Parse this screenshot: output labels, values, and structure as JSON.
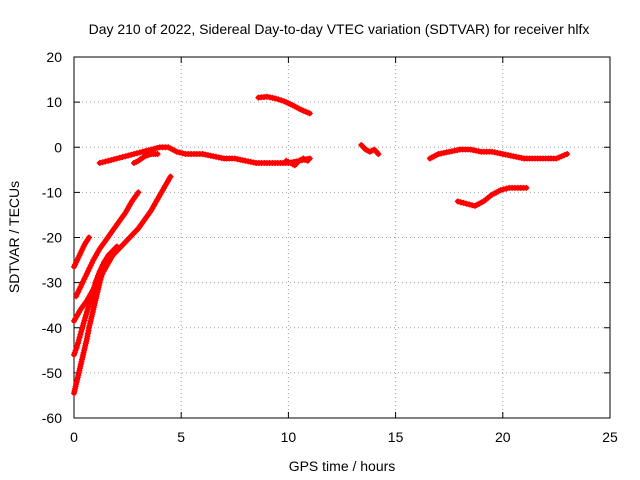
{
  "chart_data": {
    "type": "scatter",
    "title": "Day 210 of 2022, Sidereal Day-to-day VTEC variation (SDTVAR) for receiver hlfx",
    "xlabel": "GPS time / hours",
    "ylabel": "SDTVAR / TECUs",
    "xlim": [
      0,
      25
    ],
    "ylim": [
      -60,
      20
    ],
    "xticks": [
      "0",
      "5",
      "10",
      "15",
      "20",
      "25"
    ],
    "yticks": [
      "20",
      "10",
      "0",
      "-10",
      "-20",
      "-30",
      "-40",
      "-50",
      "-60"
    ],
    "xtick_values": [
      0,
      5,
      10,
      15,
      20,
      25
    ],
    "ytick_values": [
      20,
      10,
      0,
      -10,
      -20,
      -30,
      -40,
      -50,
      -60
    ],
    "grid": true,
    "marker": "+",
    "color": "#ff0000",
    "series": [
      {
        "x": [
          0.0,
          0.15,
          0.3,
          0.5,
          0.7
        ],
        "y": [
          -26.5,
          -25,
          -23.5,
          -21.5,
          -20
        ]
      },
      {
        "x": [
          0.1,
          0.3,
          0.6,
          0.9,
          1.2,
          1.5,
          1.8,
          2.1,
          2.4,
          2.7,
          3.0
        ],
        "y": [
          -33,
          -31,
          -28,
          -25,
          -22.5,
          -20.5,
          -18.5,
          -16.5,
          -14.5,
          -12,
          -10
        ]
      },
      {
        "x": [
          0.0,
          0.3,
          0.6,
          0.9,
          1.2,
          1.5,
          1.8,
          2.1,
          2.4,
          2.7,
          3.0,
          3.3,
          3.6,
          3.9,
          4.2,
          4.5
        ],
        "y": [
          -38.5,
          -36,
          -34,
          -31.5,
          -29,
          -26.5,
          -24,
          -22.5,
          -21,
          -19.5,
          -18,
          -16,
          -14,
          -11.5,
          -9,
          -6.5
        ]
      },
      {
        "x": [
          0.0,
          0.15,
          0.3,
          0.45,
          0.6,
          0.8,
          1.0,
          1.2,
          1.4,
          1.6,
          1.8,
          2.0
        ],
        "y": [
          -46,
          -44,
          -41.5,
          -39,
          -36.5,
          -33.5,
          -30,
          -27.5,
          -25.5,
          -24,
          -23,
          -22
        ]
      },
      {
        "x": [
          0.0,
          0.1,
          0.2,
          0.3,
          0.4,
          0.5,
          0.6,
          0.7,
          0.8,
          0.9,
          1.0,
          1.1,
          1.2,
          1.35,
          1.5
        ],
        "y": [
          -54.5,
          -52.5,
          -50.5,
          -48.5,
          -46.5,
          -44.5,
          -42.5,
          -40,
          -38,
          -36,
          -34,
          -32,
          -30,
          -27.5,
          -26
        ]
      },
      {
        "x": [
          1.2,
          1.6,
          2.0,
          2.4,
          2.8,
          3.2,
          3.6,
          4.0,
          4.4,
          4.8,
          5.2,
          5.6,
          6.0,
          6.5,
          7.0,
          7.5,
          8.0,
          8.5,
          9.0,
          9.5,
          10.0,
          10.5,
          11.0
        ],
        "y": [
          -3.5,
          -3,
          -2.5,
          -2,
          -1.5,
          -1,
          -0.5,
          0,
          0,
          -1,
          -1.5,
          -1.5,
          -1.5,
          -2,
          -2.5,
          -2.5,
          -3,
          -3.5,
          -3.5,
          -3.5,
          -3.5,
          -3,
          -2.5
        ]
      },
      {
        "x": [
          2.8,
          3.0,
          3.3,
          3.6,
          3.9
        ],
        "y": [
          -3.5,
          -3,
          -2,
          -1.5,
          -1.5
        ]
      },
      {
        "x": [
          9.9,
          10.1,
          10.3,
          10.5,
          10.7,
          10.9
        ],
        "y": [
          -3,
          -3.5,
          -4,
          -3,
          -2.5,
          -3
        ]
      },
      {
        "x": [
          8.6,
          9.0,
          9.4,
          9.8,
          10.2,
          10.6,
          11.0
        ],
        "y": [
          11,
          11.2,
          10.8,
          10.2,
          9.3,
          8.3,
          7.5
        ]
      },
      {
        "x": [
          13.4,
          13.6,
          13.8,
          14.0,
          14.2
        ],
        "y": [
          0.5,
          -0.5,
          -1,
          -0.5,
          -1.5
        ]
      },
      {
        "x": [
          16.6,
          17.0,
          17.5,
          18.0,
          18.5,
          19.0,
          19.5,
          20.0,
          20.5,
          21.0,
          21.5,
          22.0,
          22.5,
          23.0
        ],
        "y": [
          -2.5,
          -1.5,
          -1,
          -0.5,
          -0.5,
          -1,
          -1,
          -1.5,
          -2,
          -2.5,
          -2.5,
          -2.5,
          -2.5,
          -1.5
        ]
      },
      {
        "x": [
          17.9,
          18.3,
          18.7,
          19.1,
          19.5,
          19.9,
          20.3,
          20.7,
          21.1
        ],
        "y": [
          -12,
          -12.5,
          -13,
          -12,
          -10.5,
          -9.5,
          -9,
          -9,
          -9
        ]
      }
    ]
  }
}
